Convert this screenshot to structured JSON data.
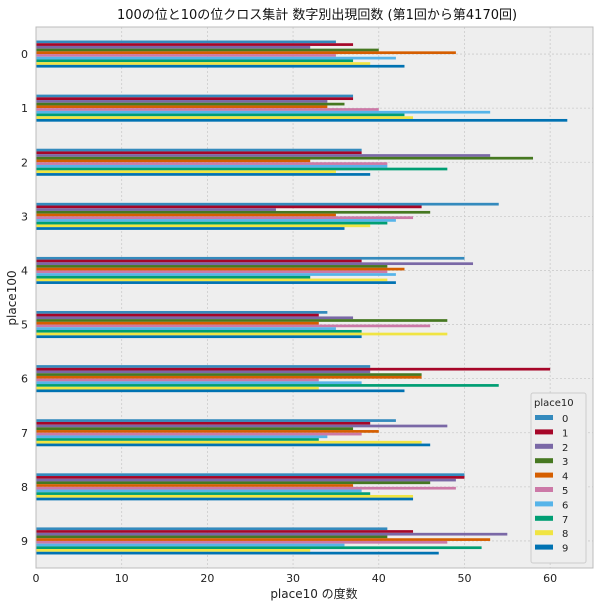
{
  "chart_data": {
    "type": "bar",
    "orientation": "horizontal",
    "title": "100の位と10の位クロス集計 数字別出現回数 (第1回から第4170回)",
    "xlabel": "place10 の度数",
    "ylabel": "place100",
    "xlim": [
      0,
      65
    ],
    "x_ticks": [
      0,
      10,
      20,
      30,
      40,
      50,
      60
    ],
    "grid": true,
    "legend_title": "place10",
    "legend_position": "lower-right",
    "categories": [
      "0",
      "1",
      "2",
      "3",
      "4",
      "5",
      "6",
      "7",
      "8",
      "9"
    ],
    "series": [
      {
        "name": "0",
        "color": "#348ABD",
        "values": [
          35,
          37,
          38,
          54,
          50,
          34,
          39,
          42,
          50,
          41
        ]
      },
      {
        "name": "1",
        "color": "#A60628",
        "values": [
          37,
          37,
          38,
          45,
          38,
          33,
          60,
          39,
          50,
          44
        ]
      },
      {
        "name": "2",
        "color": "#7A68A6",
        "values": [
          32,
          34,
          53,
          28,
          51,
          37,
          39,
          48,
          49,
          55
        ]
      },
      {
        "name": "3",
        "color": "#467821",
        "values": [
          40,
          36,
          58,
          46,
          41,
          48,
          45,
          37,
          46,
          41
        ]
      },
      {
        "name": "4",
        "color": "#D55E00",
        "values": [
          49,
          34,
          32,
          35,
          43,
          33,
          45,
          40,
          37,
          53
        ]
      },
      {
        "name": "5",
        "color": "#CC79A7",
        "values": [
          35,
          40,
          41,
          44,
          41,
          46,
          33,
          38,
          49,
          48
        ]
      },
      {
        "name": "6",
        "color": "#56B4E9",
        "values": [
          42,
          53,
          41,
          42,
          42,
          35,
          38,
          34,
          38,
          36
        ]
      },
      {
        "name": "7",
        "color": "#009E73",
        "values": [
          37,
          43,
          48,
          41,
          32,
          38,
          54,
          33,
          39,
          52
        ]
      },
      {
        "name": "8",
        "color": "#F0E442",
        "values": [
          39,
          44,
          35,
          39,
          41,
          48,
          33,
          45,
          44,
          32
        ]
      },
      {
        "name": "9",
        "color": "#0072B2",
        "values": [
          43,
          62,
          39,
          36,
          42,
          38,
          43,
          46,
          44,
          47
        ]
      }
    ]
  }
}
